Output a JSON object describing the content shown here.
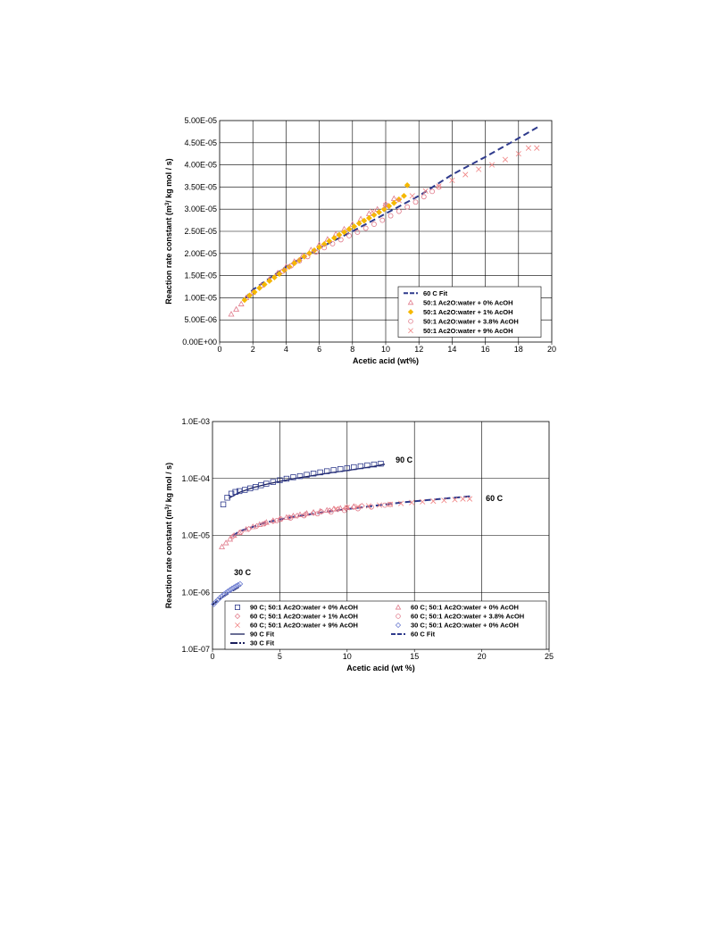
{
  "chart_data": [
    {
      "type": "scatter",
      "xlabel": "Acetic acid (wt%)",
      "ylabel_prefix": "Reaction rate constant (m",
      "ylabel_sup": "3",
      "ylabel_suffix": "/ kg mol / s)",
      "xlim": [
        0,
        20
      ],
      "ylim": [
        0,
        5e-05
      ],
      "xticks": [
        0,
        2,
        4,
        6,
        8,
        10,
        12,
        14,
        16,
        18,
        20
      ],
      "xtick_labels": [
        "0",
        "2",
        "4",
        "6",
        "8",
        "10",
        "12",
        "14",
        "16",
        "18",
        "20"
      ],
      "yticks": [
        0,
        5e-06,
        1e-05,
        1.5e-05,
        2e-05,
        2.5e-05,
        3e-05,
        3.5e-05,
        4e-05,
        4.5e-05,
        5e-05
      ],
      "ytick_labels": [
        "0.00E+00",
        "5.00E-06",
        "1.00E-05",
        "1.50E-05",
        "2.00E-05",
        "2.50E-05",
        "3.00E-05",
        "3.50E-05",
        "4.00E-05",
        "4.50E-05",
        "5.00E-05"
      ],
      "grid": true,
      "legend_position": "bottom-right",
      "series": [
        {
          "name": "60 C Fit",
          "kind": "line",
          "color": "#2e3a8c",
          "dash": "7,4",
          "x": [
            1.5,
            2,
            4,
            6,
            8,
            10,
            12,
            14,
            16,
            18,
            19.2
          ],
          "y": [
            9.8e-06,
            1.18e-05,
            1.7e-05,
            2.12e-05,
            2.5e-05,
            2.9e-05,
            3.3e-05,
            3.78e-05,
            4.18e-05,
            4.6e-05,
            4.86e-05
          ]
        },
        {
          "name": "50:1 Ac2O:water + 0% AcOH",
          "kind": "marker",
          "marker": "triangle",
          "color": "#e07a8a",
          "x": [
            0.7,
            1.0,
            1.3,
            1.6,
            2.0,
            2.5,
            3.0,
            3.5,
            4.0,
            4.5,
            5.0,
            5.5,
            6.0,
            6.5,
            7.0,
            7.5,
            8.0,
            8.5,
            9.0,
            9.5,
            10.0,
            10.5
          ],
          "y": [
            6.3e-06,
            7.4e-06,
            8.6e-06,
            1e-05,
            1.12e-05,
            1.28e-05,
            1.42e-05,
            1.56e-05,
            1.7e-05,
            1.82e-05,
            1.95e-05,
            2.08e-05,
            2.2e-05,
            2.32e-05,
            2.44e-05,
            2.55e-05,
            2.66e-05,
            2.78e-05,
            2.9e-05,
            3e-05,
            3.12e-05,
            3.24e-05
          ]
        },
        {
          "name": "50:1 Ac2O:water + 1% AcOH",
          "kind": "marker",
          "marker": "diamond",
          "color": "#f5b800",
          "x": [
            1.5,
            1.8,
            2.1,
            2.4,
            2.7,
            3.0,
            3.3,
            3.6,
            3.9,
            4.2,
            4.5,
            4.8,
            5.1,
            5.4,
            5.7,
            6.0,
            6.3,
            6.6,
            6.9,
            7.2,
            7.5,
            7.8,
            8.1,
            8.4,
            8.7,
            9.0,
            9.3,
            9.6,
            9.9,
            10.2,
            10.5,
            10.8,
            11.1,
            11.3
          ],
          "y": [
            9.5e-06,
            1.05e-05,
            1.13e-05,
            1.22e-05,
            1.3e-05,
            1.38e-05,
            1.46e-05,
            1.54e-05,
            1.62e-05,
            1.7e-05,
            1.78e-05,
            1.85e-05,
            1.93e-05,
            2e-05,
            2.07e-05,
            2.14e-05,
            2.21e-05,
            2.28e-05,
            2.35e-05,
            2.42e-05,
            2.48e-05,
            2.55e-05,
            2.61e-05,
            2.68e-05,
            2.74e-05,
            2.8e-05,
            2.87e-05,
            2.93e-05,
            3e-05,
            3.07e-05,
            3.14e-05,
            3.22e-05,
            3.3e-05,
            3.54e-05
          ]
        },
        {
          "name": "50:1 Ac2O:water + 3.8% AcOH",
          "kind": "marker",
          "marker": "circle",
          "color": "#e07a8a",
          "x": [
            3.8,
            4.3,
            4.8,
            5.3,
            5.8,
            6.3,
            6.8,
            7.3,
            7.8,
            8.3,
            8.8,
            9.3,
            9.8,
            10.3,
            10.8,
            11.3,
            11.8,
            12.3,
            12.8,
            13.2
          ],
          "y": [
            1.6e-05,
            1.72e-05,
            1.83e-05,
            1.93e-05,
            2.03e-05,
            2.13e-05,
            2.22e-05,
            2.31e-05,
            2.4e-05,
            2.48e-05,
            2.57e-05,
            2.66e-05,
            2.75e-05,
            2.85e-05,
            2.95e-05,
            3.05e-05,
            3.16e-05,
            3.28e-05,
            3.4e-05,
            3.5e-05
          ]
        },
        {
          "name": "50:1 Ac2O:water + 9% AcOH",
          "kind": "marker",
          "marker": "cross",
          "color": "#f08080",
          "x": [
            9.2,
            10.0,
            10.8,
            11.6,
            12.4,
            13.2,
            14.0,
            14.8,
            15.6,
            16.4,
            17.2,
            18.0,
            18.6,
            19.1
          ],
          "y": [
            2.95e-05,
            3.08e-05,
            3.2e-05,
            3.3e-05,
            3.41e-05,
            3.52e-05,
            3.65e-05,
            3.78e-05,
            3.9e-05,
            4e-05,
            4.12e-05,
            4.25e-05,
            4.38e-05,
            4.38e-05
          ]
        }
      ]
    },
    {
      "type": "scatter",
      "xlabel": "Acetic acid (wt %)",
      "ylabel_prefix": "Reaction rate constant (m",
      "ylabel_sup": "3",
      "ylabel_suffix": "/ kg mol / s)",
      "xlim": [
        0,
        25
      ],
      "ylim": [
        1e-07,
        0.001
      ],
      "yscale": "log",
      "xticks": [
        0,
        5,
        10,
        15,
        20,
        25
      ],
      "xtick_labels": [
        "0",
        "5",
        "10",
        "15",
        "20",
        "25"
      ],
      "yticks": [
        1e-07,
        1e-06,
        1e-05,
        0.0001,
        0.001
      ],
      "ytick_labels": [
        "1.0E-07",
        "1.0E-06",
        "1.0E-05",
        "1.0E-04",
        "1.0E-03"
      ],
      "grid": true,
      "legend_position": "bottom",
      "annotations": [
        {
          "text": "90 C",
          "x": 13.6,
          "y": 0.00019
        },
        {
          "text": "60 C",
          "x": 20.3,
          "y": 4e-05
        },
        {
          "text": "30 C",
          "x": 1.6,
          "y": 2e-06
        }
      ],
      "series": [
        {
          "name": "90 C; 50:1 Ac2O:water + 0% AcOH",
          "kind": "marker",
          "marker": "square",
          "color": "#2e3a8c",
          "x": [
            0.8,
            1.1,
            1.4,
            1.7,
            2.0,
            2.4,
            2.8,
            3.2,
            3.6,
            4.0,
            4.5,
            5.0,
            5.5,
            6.0,
            6.5,
            7.0,
            7.5,
            8.0,
            8.5,
            9.0,
            9.5,
            10.0,
            10.5,
            11.0,
            11.5,
            12.0,
            12.5
          ],
          "y": [
            3.5e-05,
            4.6e-05,
            5.4e-05,
            5.8e-05,
            6e-05,
            6.3e-05,
            6.7e-05,
            7.1e-05,
            7.6e-05,
            8.1e-05,
            8.7e-05,
            9.3e-05,
            9.9e-05,
            0.000105,
            0.00011,
            0.000116,
            0.000122,
            0.000128,
            0.000134,
            0.00014,
            0.000146,
            0.000152,
            0.000158,
            0.000164,
            0.00017,
            0.000176,
            0.000182
          ]
        },
        {
          "name": "60 C; 50:1 Ac2O:water + 0% AcOH",
          "kind": "marker",
          "marker": "triangle",
          "color": "#e07a8a",
          "x": [
            0.7,
            1.0,
            1.3,
            1.6,
            2.0,
            2.5,
            3.0,
            3.5,
            4.0,
            4.5,
            5.0,
            5.5,
            6.0,
            6.5,
            7.0,
            7.5,
            8.0,
            8.5,
            9.0,
            9.5,
            10.0,
            10.5
          ],
          "y": [
            6.3e-06,
            7.4e-06,
            8.6e-06,
            1e-05,
            1.12e-05,
            1.28e-05,
            1.42e-05,
            1.56e-05,
            1.7e-05,
            1.82e-05,
            1.95e-05,
            2.08e-05,
            2.2e-05,
            2.32e-05,
            2.44e-05,
            2.55e-05,
            2.66e-05,
            2.78e-05,
            2.9e-05,
            3e-05,
            3.12e-05,
            3.24e-05
          ]
        },
        {
          "name": "60 C; 50:1 Ac2O:water + 1% AcOH",
          "kind": "marker",
          "marker": "diamond",
          "color": "#e07a8a",
          "x": [
            1.5,
            2.1,
            2.7,
            3.3,
            3.9,
            4.5,
            5.1,
            5.7,
            6.3,
            6.9,
            7.5,
            8.1,
            8.7,
            9.3,
            9.9,
            10.5,
            11.1
          ],
          "y": [
            9.5e-06,
            1.13e-05,
            1.3e-05,
            1.46e-05,
            1.62e-05,
            1.78e-05,
            1.93e-05,
            2.07e-05,
            2.21e-05,
            2.35e-05,
            2.48e-05,
            2.61e-05,
            2.74e-05,
            2.87e-05,
            3e-05,
            3.14e-05,
            3.3e-05
          ]
        },
        {
          "name": "60 C; 50:1 Ac2O:water + 3.8% AcOH",
          "kind": "marker",
          "marker": "circle",
          "color": "#e07a8a",
          "x": [
            3.8,
            4.8,
            5.8,
            6.8,
            7.8,
            8.8,
            9.8,
            10.8,
            11.8,
            12.8,
            13.2
          ],
          "y": [
            1.6e-05,
            1.83e-05,
            2.03e-05,
            2.22e-05,
            2.4e-05,
            2.57e-05,
            2.75e-05,
            2.95e-05,
            3.16e-05,
            3.4e-05,
            3.5e-05
          ]
        },
        {
          "name": "60 C; 50:1 Ac2O:water + 9% AcOH",
          "kind": "marker",
          "marker": "cross",
          "color": "#f08080",
          "x": [
            9.2,
            10.0,
            10.8,
            11.6,
            12.4,
            13.2,
            14.0,
            14.8,
            15.6,
            16.4,
            17.2,
            18.0,
            18.6,
            19.1
          ],
          "y": [
            2.95e-05,
            3.08e-05,
            3.2e-05,
            3.3e-05,
            3.41e-05,
            3.52e-05,
            3.65e-05,
            3.78e-05,
            3.9e-05,
            4e-05,
            4.12e-05,
            4.25e-05,
            4.38e-05,
            4.38e-05
          ]
        },
        {
          "name": "30 C; 50:1 Ac2O:water + 0% AcOH",
          "kind": "marker",
          "marker": "diamond",
          "color": "#6b7bd0",
          "x": [
            0.1,
            0.25,
            0.4,
            0.55,
            0.7,
            0.85,
            1.0,
            1.15,
            1.3,
            1.45,
            1.6,
            1.75,
            1.9,
            2.05
          ],
          "y": [
            6.2e-07,
            6.8e-07,
            7.4e-07,
            8e-07,
            8.6e-07,
            9.2e-07,
            9.8e-07,
            1.04e-06,
            1.1e-06,
            1.16e-06,
            1.22e-06,
            1.28e-06,
            1.34e-06,
            1.4e-06
          ]
        },
        {
          "name": "90 C Fit",
          "kind": "line",
          "color": "#1a1f5c",
          "dash": "",
          "x": [
            1.2,
            2,
            3,
            4,
            5,
            6,
            7,
            8,
            9,
            10,
            11,
            12,
            12.8
          ],
          "y": [
            4.5e-05,
            5.7e-05,
            6.9e-05,
            7.9e-05,
            8.9e-05,
            9.9e-05,
            0.000108,
            0.000118,
            0.000128,
            0.000138,
            0.00015,
            0.000164,
            0.000178
          ]
        },
        {
          "name": "60 C Fit",
          "kind": "line",
          "color": "#2e3a8c",
          "dash": "7,4",
          "x": [
            1.5,
            2,
            4,
            6,
            8,
            10,
            12,
            14,
            16,
            18,
            19.2
          ],
          "y": [
            9.8e-06,
            1.18e-05,
            1.7e-05,
            2.12e-05,
            2.5e-05,
            2.9e-05,
            3.3e-05,
            3.78e-05,
            4.18e-05,
            4.6e-05,
            4.86e-05
          ]
        },
        {
          "name": "30 C Fit",
          "kind": "line",
          "color": "#1a1f5c",
          "dash": "8,2,2,2",
          "x": [
            0,
            0.3,
            0.6,
            0.9,
            1.2,
            1.5,
            1.8,
            2.1
          ],
          "y": [
            6e-07,
            6.9e-07,
            7.8e-07,
            8.7e-07,
            9.7e-07,
            1.07e-06,
            1.18e-06,
            1.3e-06
          ]
        }
      ]
    }
  ]
}
